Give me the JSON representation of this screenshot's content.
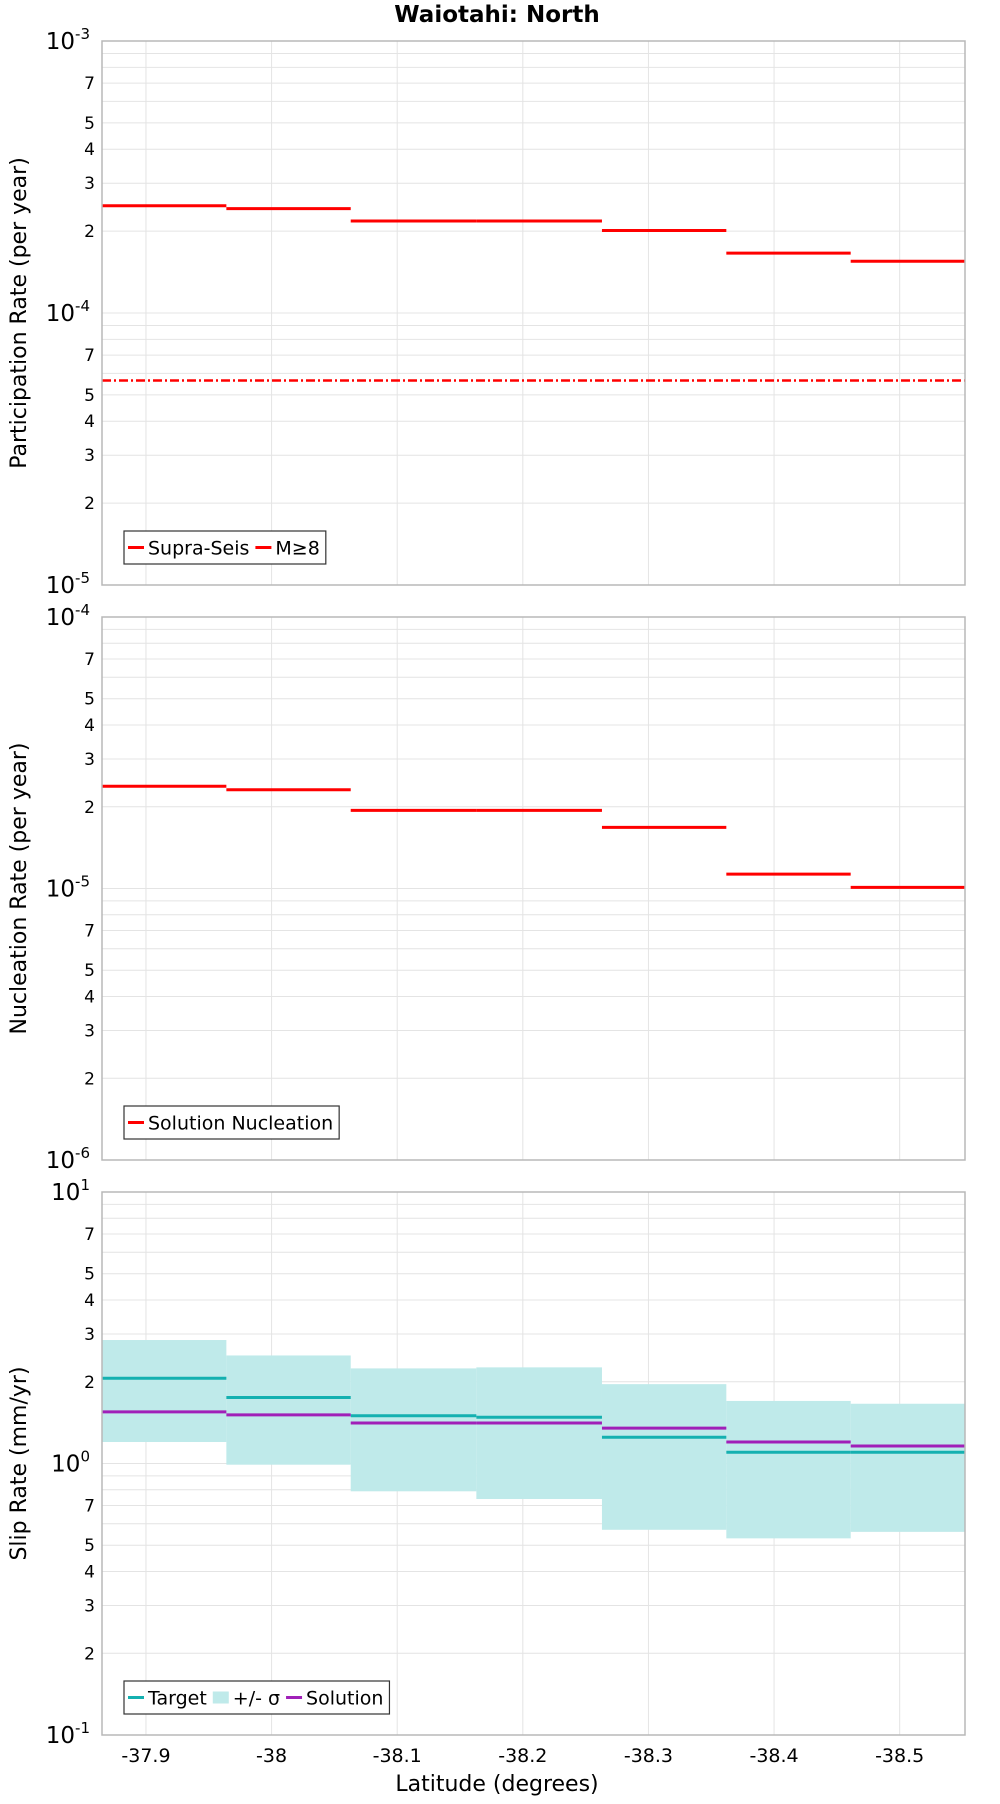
{
  "chart_data": {
    "title": "Waiotahi: North",
    "xlabel": "Latitude (degrees)",
    "xlim": [
      -37.865,
      -38.552
    ],
    "x_ticks": [
      -37.9,
      -38,
      -38.1,
      -38.2,
      -38.3,
      -38.4,
      -38.5
    ],
    "x_tick_labels": [
      "-37.9",
      "-38",
      "-38.1",
      "-38.2",
      "-38.3",
      "-38.4",
      "-38.5"
    ],
    "panels": [
      {
        "type": "line",
        "ylabel": "Participation Rate (per year)",
        "yscale": "log",
        "ylim": [
          1e-05,
          0.001
        ],
        "y_major_labels": [
          {
            "base": "10",
            "exp": "-3"
          },
          {
            "base": "10",
            "exp": "-4"
          },
          {
            "base": "10",
            "exp": "-5"
          }
        ],
        "y_minor_labels": [
          "7",
          "5",
          "4",
          "3",
          "2"
        ],
        "grid": true,
        "legend_position": "bottom-left",
        "legend": [
          "Supra-Seis",
          "M≥8"
        ],
        "series": [
          {
            "name": "Supra-Seis",
            "color": "#ff0000",
            "style": "solid",
            "segments": [
              {
                "x0": -37.865,
                "x1": -37.964,
                "y": 0.000248
              },
              {
                "x0": -37.964,
                "x1": -38.063,
                "y": 0.000242
              },
              {
                "x0": -38.063,
                "x1": -38.163,
                "y": 0.000218
              },
              {
                "x0": -38.163,
                "x1": -38.263,
                "y": 0.000218
              },
              {
                "x0": -38.263,
                "x1": -38.362,
                "y": 0.000201
              },
              {
                "x0": -38.362,
                "x1": -38.461,
                "y": 0.000166
              },
              {
                "x0": -38.461,
                "x1": -38.552,
                "y": 0.000155
              }
            ]
          },
          {
            "name": "M≥8",
            "color": "#ff0000",
            "style": "dash-dot",
            "segments": [
              {
                "x0": -37.865,
                "x1": -38.552,
                "y": 5.65e-05
              }
            ]
          }
        ]
      },
      {
        "type": "line",
        "ylabel": "Nucleation Rate (per year)",
        "yscale": "log",
        "ylim": [
          1e-06,
          0.0001
        ],
        "y_major_labels": [
          {
            "base": "10",
            "exp": "-4"
          },
          {
            "base": "10",
            "exp": "-5"
          },
          {
            "base": "10",
            "exp": "-6"
          }
        ],
        "y_minor_labels": [
          "7",
          "5",
          "4",
          "3",
          "2"
        ],
        "grid": true,
        "legend_position": "bottom-left",
        "legend": [
          "Solution Nucleation"
        ],
        "series": [
          {
            "name": "Solution Nucleation",
            "color": "#ff0000",
            "style": "solid",
            "segments": [
              {
                "x0": -37.865,
                "x1": -37.964,
                "y": 2.38e-05
              },
              {
                "x0": -37.964,
                "x1": -38.063,
                "y": 2.31e-05
              },
              {
                "x0": -38.063,
                "x1": -38.163,
                "y": 1.94e-05
              },
              {
                "x0": -38.163,
                "x1": -38.263,
                "y": 1.94e-05
              },
              {
                "x0": -38.263,
                "x1": -38.362,
                "y": 1.68e-05
              },
              {
                "x0": -38.362,
                "x1": -38.461,
                "y": 1.13e-05
              },
              {
                "x0": -38.461,
                "x1": -38.552,
                "y": 1.01e-05
              }
            ]
          }
        ]
      },
      {
        "type": "line",
        "ylabel": "Slip Rate (mm/yr)",
        "yscale": "log",
        "ylim": [
          0.1,
          10
        ],
        "y_major_labels": [
          {
            "base": "10",
            "exp": "1"
          },
          {
            "base": "10",
            "exp": "0"
          },
          {
            "base": "10",
            "exp": "-1"
          }
        ],
        "y_minor_labels": [
          "7",
          "5",
          "4",
          "3",
          "2"
        ],
        "grid": true,
        "legend_position": "bottom-left",
        "legend": [
          "Target",
          "+/- σ",
          "Solution"
        ],
        "bands": [
          {
            "name": "+/- σ",
            "color": "#bfeaea",
            "segments": [
              {
                "x0": -37.865,
                "x1": -37.964,
                "low": 1.2,
                "high": 2.85
              },
              {
                "x0": -37.964,
                "x1": -38.063,
                "low": 0.99,
                "high": 2.5
              },
              {
                "x0": -38.063,
                "x1": -38.163,
                "low": 0.79,
                "high": 2.24
              },
              {
                "x0": -38.163,
                "x1": -38.263,
                "low": 0.74,
                "high": 2.26
              },
              {
                "x0": -38.263,
                "x1": -38.362,
                "low": 0.57,
                "high": 1.96
              },
              {
                "x0": -38.362,
                "x1": -38.461,
                "low": 0.53,
                "high": 1.7
              },
              {
                "x0": -38.461,
                "x1": -38.552,
                "low": 0.56,
                "high": 1.66
              }
            ]
          }
        ],
        "series": [
          {
            "name": "Target",
            "color": "#14b0b0",
            "style": "solid",
            "segments": [
              {
                "x0": -37.865,
                "x1": -37.964,
                "y": 2.06
              },
              {
                "x0": -37.964,
                "x1": -38.063,
                "y": 1.75
              },
              {
                "x0": -38.063,
                "x1": -38.163,
                "y": 1.5
              },
              {
                "x0": -38.163,
                "x1": -38.263,
                "y": 1.48
              },
              {
                "x0": -38.263,
                "x1": -38.362,
                "y": 1.25
              },
              {
                "x0": -38.362,
                "x1": -38.461,
                "y": 1.1
              },
              {
                "x0": -38.461,
                "x1": -38.552,
                "y": 1.1
              }
            ]
          },
          {
            "name": "Solution",
            "color": "#a020b8",
            "style": "solid",
            "segments": [
              {
                "x0": -37.865,
                "x1": -37.964,
                "y": 1.55
              },
              {
                "x0": -37.964,
                "x1": -38.063,
                "y": 1.51
              },
              {
                "x0": -38.063,
                "x1": -38.163,
                "y": 1.41
              },
              {
                "x0": -38.163,
                "x1": -38.263,
                "y": 1.41
              },
              {
                "x0": -38.263,
                "x1": -38.362,
                "y": 1.35
              },
              {
                "x0": -38.362,
                "x1": -38.461,
                "y": 1.2
              },
              {
                "x0": -38.461,
                "x1": -38.552,
                "y": 1.16
              }
            ]
          }
        ]
      }
    ]
  }
}
